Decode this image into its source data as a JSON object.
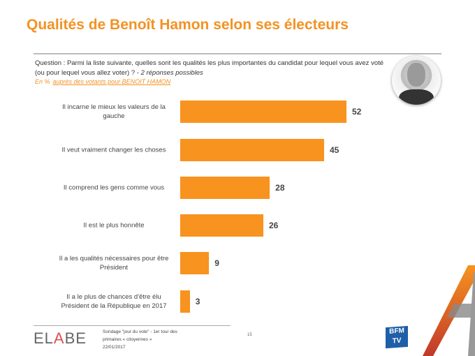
{
  "title": "Qualités de Benoît Hamon selon ses électeurs",
  "question": {
    "text": "Question : Parmi la liste suivante, quelles sont les qualités les plus importantes du candidat pour lequel vous avez voté (ou pour lequel vous allez voter) ? - ",
    "note": "2 réponses possibles"
  },
  "basis": {
    "unit": "En %",
    "population": "auprès des votants pour BENOIT HAMON"
  },
  "chart_data": {
    "type": "bar",
    "orientation": "horizontal",
    "title": "Qualités de Benoît Hamon selon ses électeurs",
    "xlabel": "",
    "ylabel": "",
    "unit": "%",
    "categories": [
      "Il incarne le mieux les valeurs de la gauche",
      "Il veut vraiment changer les choses",
      "Il comprend les gens comme vous",
      "Il est le plus honnête",
      "Il a les qualités nécessaires pour être Président",
      "Il a le plus de chances d'être élu Président de la République en 2017"
    ],
    "values": [
      52,
      45,
      28,
      26,
      9,
      3
    ],
    "xlim": [
      0,
      52
    ],
    "bar_color": "#F7931E"
  },
  "footer": {
    "logo": "ELABE",
    "source_line1": "Sondage \"jour du vote\" - 1er tour des",
    "source_line2": "primaires « citoyennes »",
    "date": "22/01/2017",
    "page": "15",
    "partner_logo": "BFM TV"
  }
}
